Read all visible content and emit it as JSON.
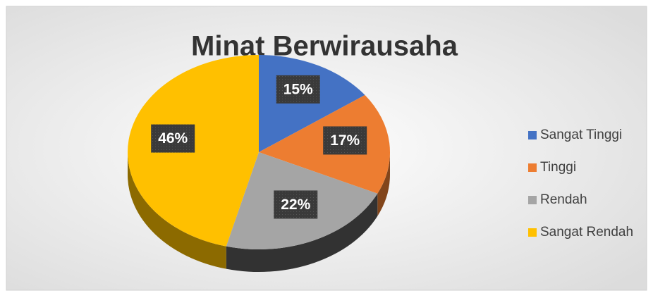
{
  "chart_data": {
    "type": "pie",
    "title": "Minat Berwirausaha",
    "categories": [
      "Sangat Tinggi",
      "Tinggi",
      "Rendah",
      "Sangat Rendah"
    ],
    "values": [
      15,
      17,
      22,
      46
    ],
    "value_labels": [
      "15%",
      "17%",
      "22%",
      "46%"
    ],
    "colors": [
      "#4472c4",
      "#ed7d31",
      "#a5a5a5",
      "#ffc000"
    ],
    "legend": "right"
  }
}
